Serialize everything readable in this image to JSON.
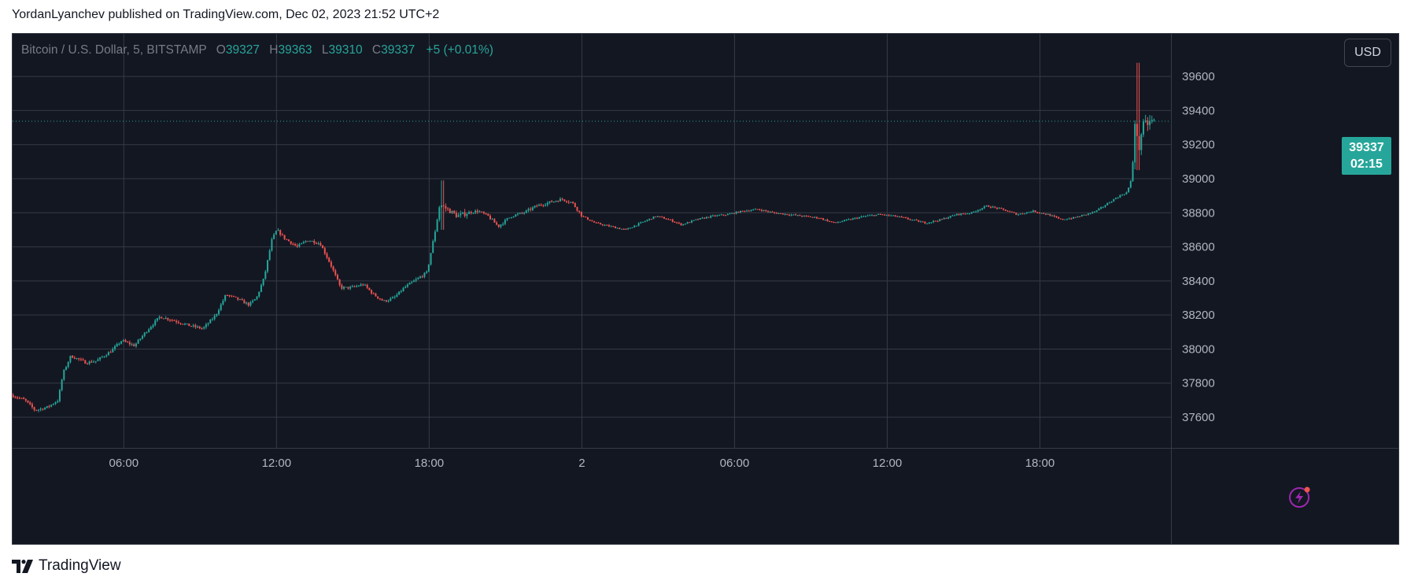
{
  "header": {
    "title": "YordanLyanchev published on TradingView.com, Dec 02, 2023 21:52 UTC+2"
  },
  "legend": {
    "symbol": "Bitcoin / U.S. Dollar, 5, BITSTAMP",
    "o_label": "O",
    "o": "39327",
    "h_label": "H",
    "h": "39363",
    "l_label": "L",
    "l": "39310",
    "c_label": "C",
    "c": "39337",
    "change": "+5 (+0.01%)"
  },
  "currency_button": "USD",
  "price_badge": {
    "price": "39337",
    "countdown": "02:15"
  },
  "footer": {
    "brand": "TradingView"
  },
  "colors": {
    "up": "#26a69a",
    "down": "#ef5350",
    "background": "#131722",
    "grid": "#363a45",
    "axis_text": "#b2b5be"
  },
  "icons": {
    "bolt": "lightning-bolt-icon",
    "logo": "tradingview-logo-icon"
  },
  "chart_data": {
    "type": "candlestick",
    "symbol": "Bitcoin / U.S. Dollar",
    "interval": "5",
    "exchange": "BITSTAMP",
    "currency": "USD",
    "last_price": 39337,
    "ylim": [
      37420,
      39850
    ],
    "y_ticks": [
      37600,
      37800,
      38000,
      38200,
      38400,
      38600,
      38800,
      39000,
      39200,
      39400,
      39600
    ],
    "x_ticks": [
      {
        "hour": 6,
        "label": "06:00"
      },
      {
        "hour": 12,
        "label": "12:00"
      },
      {
        "hour": 18,
        "label": "18:00"
      },
      {
        "hour": 24,
        "label": "2"
      },
      {
        "hour": 30,
        "label": "06:00"
      },
      {
        "hour": 36,
        "label": "12:00"
      },
      {
        "hour": 42,
        "label": "18:00"
      }
    ],
    "xlim_hours": [
      1.63,
      47.15
    ],
    "grid": true,
    "price_path": [
      [
        1.65,
        37730
      ],
      [
        2.2,
        37700
      ],
      [
        2.6,
        37640
      ],
      [
        3.1,
        37660
      ],
      [
        3.5,
        37700
      ],
      [
        3.7,
        37860
      ],
      [
        4.0,
        37960
      ],
      [
        4.6,
        37920
      ],
      [
        5.0,
        37930
      ],
      [
        5.6,
        37990
      ],
      [
        6.0,
        38050
      ],
      [
        6.5,
        38020
      ],
      [
        7.0,
        38110
      ],
      [
        7.5,
        38190
      ],
      [
        8.0,
        38170
      ],
      [
        8.6,
        38140
      ],
      [
        9.2,
        38120
      ],
      [
        9.7,
        38200
      ],
      [
        10.1,
        38320
      ],
      [
        10.6,
        38290
      ],
      [
        11.0,
        38260
      ],
      [
        11.3,
        38300
      ],
      [
        11.6,
        38420
      ],
      [
        11.9,
        38640
      ],
      [
        12.1,
        38700
      ],
      [
        12.4,
        38650
      ],
      [
        12.9,
        38600
      ],
      [
        13.3,
        38640
      ],
      [
        13.8,
        38620
      ],
      [
        14.2,
        38500
      ],
      [
        14.6,
        38360
      ],
      [
        15.0,
        38360
      ],
      [
        15.5,
        38380
      ],
      [
        15.9,
        38320
      ],
      [
        16.3,
        38280
      ],
      [
        16.7,
        38300
      ],
      [
        17.1,
        38360
      ],
      [
        17.5,
        38400
      ],
      [
        18.0,
        38450
      ],
      [
        18.3,
        38680
      ],
      [
        18.5,
        38850
      ],
      [
        18.8,
        38820
      ],
      [
        19.2,
        38780
      ],
      [
        19.6,
        38800
      ],
      [
        20.0,
        38810
      ],
      [
        20.4,
        38780
      ],
      [
        20.8,
        38720
      ],
      [
        21.3,
        38780
      ],
      [
        21.8,
        38800
      ],
      [
        22.3,
        38840
      ],
      [
        22.8,
        38860
      ],
      [
        23.3,
        38880
      ],
      [
        23.7,
        38860
      ],
      [
        24.1,
        38780
      ],
      [
        24.6,
        38740
      ],
      [
        25.2,
        38720
      ],
      [
        25.8,
        38700
      ],
      [
        26.4,
        38740
      ],
      [
        27.0,
        38780
      ],
      [
        27.5,
        38760
      ],
      [
        28.0,
        38730
      ],
      [
        28.6,
        38760
      ],
      [
        29.2,
        38780
      ],
      [
        29.8,
        38790
      ],
      [
        30.4,
        38810
      ],
      [
        31.0,
        38820
      ],
      [
        31.6,
        38800
      ],
      [
        32.2,
        38790
      ],
      [
        32.8,
        38780
      ],
      [
        33.4,
        38770
      ],
      [
        34.0,
        38740
      ],
      [
        34.6,
        38760
      ],
      [
        35.2,
        38780
      ],
      [
        35.8,
        38790
      ],
      [
        36.4,
        38780
      ],
      [
        37.0,
        38760
      ],
      [
        37.6,
        38740
      ],
      [
        38.2,
        38760
      ],
      [
        38.8,
        38790
      ],
      [
        39.4,
        38800
      ],
      [
        40.0,
        38840
      ],
      [
        40.6,
        38820
      ],
      [
        41.2,
        38790
      ],
      [
        41.8,
        38810
      ],
      [
        42.4,
        38790
      ],
      [
        42.9,
        38760
      ],
      [
        43.4,
        38770
      ],
      [
        43.9,
        38790
      ],
      [
        44.3,
        38810
      ],
      [
        44.8,
        38860
      ],
      [
        45.1,
        38890
      ],
      [
        45.5,
        38920
      ],
      [
        45.7,
        39000
      ],
      [
        45.82,
        39350
      ],
      [
        45.95,
        39150
      ],
      [
        46.1,
        39300
      ],
      [
        46.35,
        39330
      ],
      [
        46.55,
        39337
      ]
    ],
    "spikes": [
      {
        "hour": 45.85,
        "high": 39680,
        "low": 39050
      },
      {
        "hour": 18.55,
        "high": 38990,
        "low": 38700
      }
    ]
  }
}
